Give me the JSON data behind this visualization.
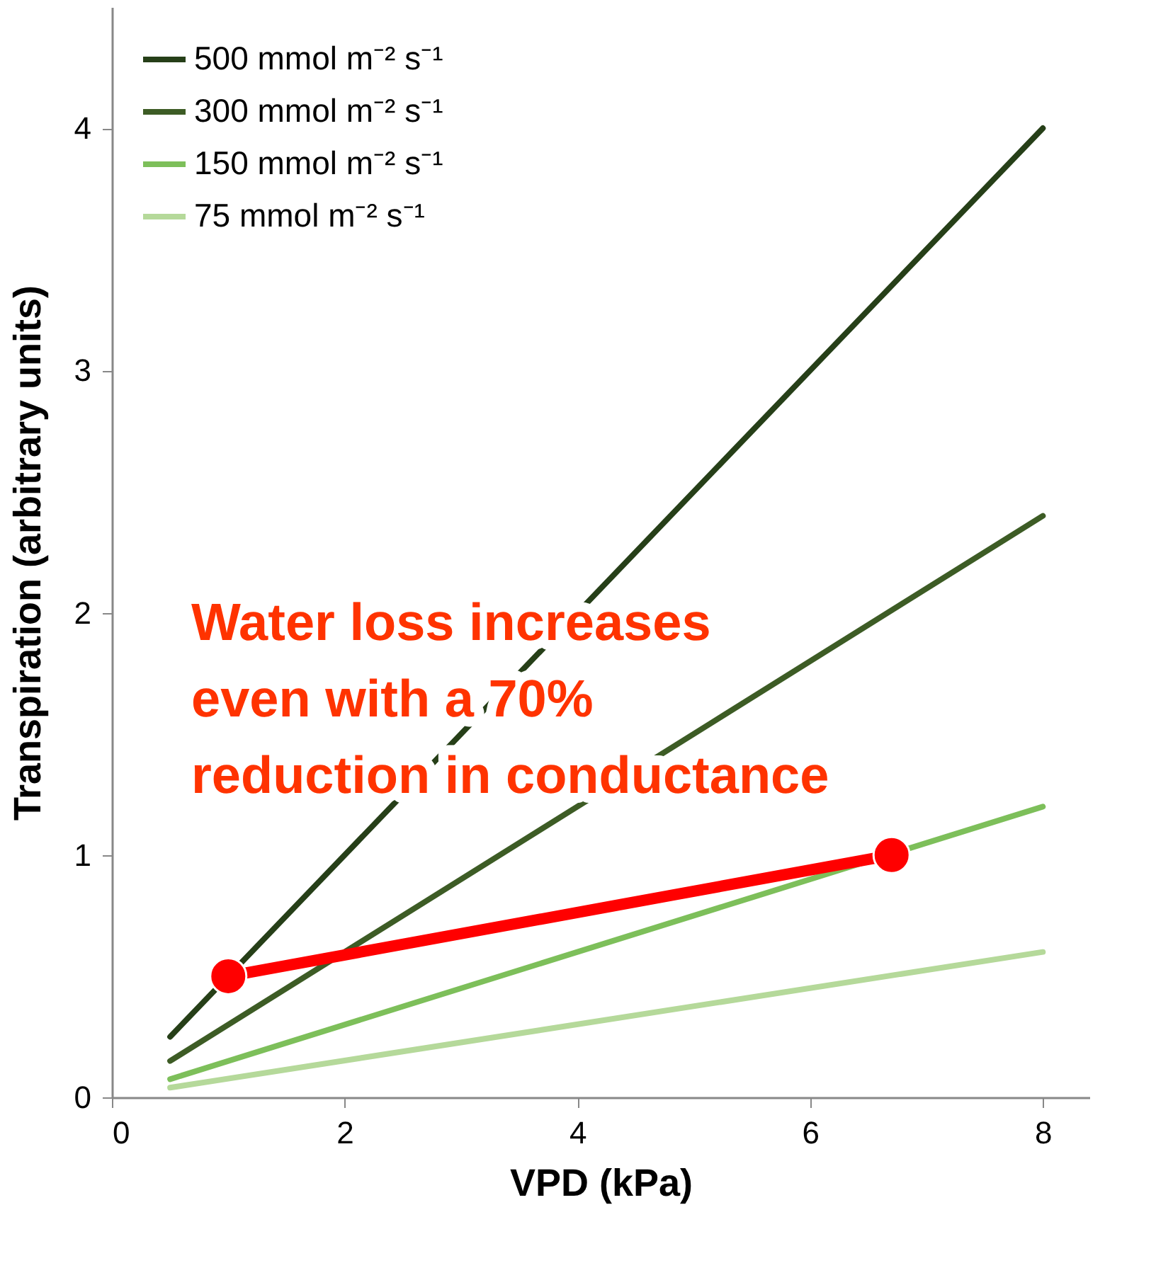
{
  "chart_data": {
    "type": "line",
    "xlabel": "VPD (kPa)",
    "ylabel": "Transpiration (arbitrary units)",
    "xlim": [
      0,
      8.4
    ],
    "xticks": [
      0,
      2,
      4,
      6,
      8
    ],
    "ylim": [
      0,
      4.5
    ],
    "yticks": [
      0,
      1,
      2,
      3,
      4
    ],
    "grid": false,
    "legend": "top left",
    "line_style": "solid",
    "series": [
      {
        "name": "500 mmol m⁻² s⁻¹",
        "color": "#263f18",
        "x": [
          0.5,
          8
        ],
        "values": [
          0.25,
          4.0
        ]
      },
      {
        "name": "300 mmol m⁻² s⁻¹",
        "color": "#3d5c25",
        "x": [
          0.5,
          8
        ],
        "values": [
          0.15,
          2.4
        ]
      },
      {
        "name": "150 mmol m⁻² s⁻¹",
        "color": "#7dbf5a",
        "x": [
          0.5,
          8
        ],
        "values": [
          0.075,
          1.2
        ]
      },
      {
        "name": "75 mmol m⁻² s⁻¹",
        "color": "#b5d99a",
        "x": [
          0.5,
          8
        ],
        "values": [
          0.04,
          0.6
        ]
      },
      {
        "color": "#ff0000",
        "x": [
          1,
          6.7
        ],
        "values": [
          0.5,
          1.0
        ],
        "marker": "circle"
      }
    ],
    "annotations": [
      "Water loss increases\neven with a 70%\nreduction in conductance"
    ]
  }
}
